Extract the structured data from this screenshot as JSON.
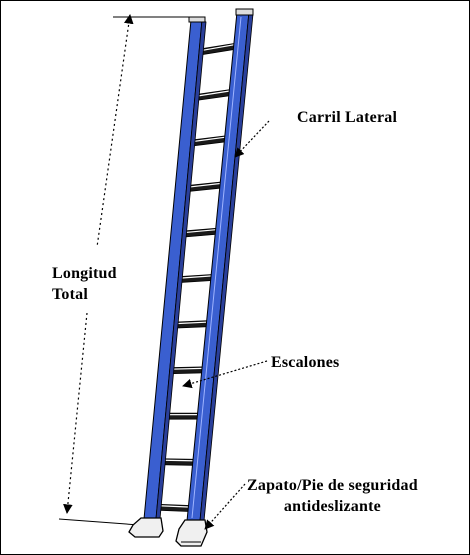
{
  "labels": {
    "length_line1": "Longitud",
    "length_line2": "Total",
    "rail": "Carril Lateral",
    "rungs": "Escalones",
    "shoe_line1": "Zapato/Pie de seguridad",
    "shoe_line2": "antideslizante"
  },
  "colors": {
    "rail_fill": "#3a5fd0",
    "rail_dark": "#2a3f9a",
    "rung_fill": "#1a1a1a",
    "outline": "#000000",
    "background": "#ffffff"
  },
  "icons": {
    "pointer": "arrow-icon"
  }
}
